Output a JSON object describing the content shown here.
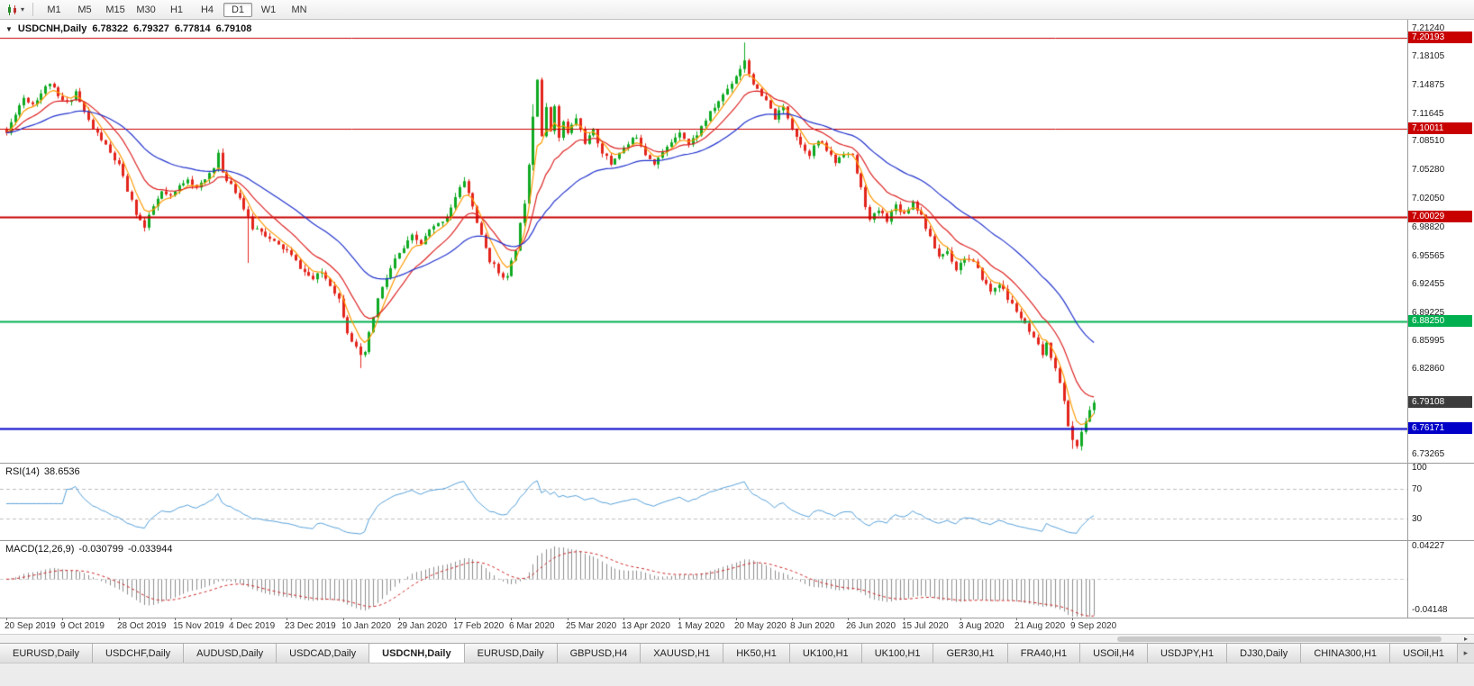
{
  "toolbar": {
    "timeframes": [
      "M1",
      "M5",
      "M15",
      "M30",
      "H1",
      "H4",
      "D1",
      "W1",
      "MN"
    ],
    "active_timeframe": "D1"
  },
  "icons": {
    "collapse": "▼",
    "caret": "▾",
    "scroll_right": "▸",
    "chart_type": "candlestick-chart"
  },
  "chart": {
    "title": {
      "symbol": "USDCNH,Daily",
      "open": "6.78322",
      "high": "6.79327",
      "low": "6.77814",
      "close": "6.79108"
    }
  },
  "tabs": {
    "active_index": 4,
    "items": [
      "EURUSD,Daily",
      "USDCHF,Daily",
      "AUDUSD,Daily",
      "USDCAD,Daily",
      "USDCNH,Daily",
      "EURUSD,Daily",
      "GBPUSD,H4",
      "XAUUSD,H1",
      "HK50,H1",
      "UK100,H1",
      "UK100,H1",
      "GER30,H1",
      "FRA40,H1",
      "USOil,H4",
      "USDJPY,H1",
      "DJ30,Daily",
      "CHINA300,H1",
      "USOil,H1"
    ]
  },
  "chart_data": {
    "type": "candlestick",
    "symbol": "USDCNH",
    "timeframe": "Daily",
    "price_range": {
      "top": 7.2225,
      "bottom": 6.7235
    },
    "price_axis_labels": [
      "7.21240",
      "7.18105",
      "7.14875",
      "7.11645",
      "7.08510",
      "7.05280",
      "7.02050",
      "6.98820",
      "6.95565",
      "6.92455",
      "6.89225",
      "6.85995",
      "6.82860",
      "6.73265"
    ],
    "x_axis_dates": [
      "20 Sep 2019",
      "9 Oct 2019",
      "28 Oct 2019",
      "15 Nov 2019",
      "4 Dec 2019",
      "23 Dec 2019",
      "10 Jan 2020",
      "29 Jan 2020",
      "17 Feb 2020",
      "6 Mar 2020",
      "25 Mar 2020",
      "13 Apr 2020",
      "1 May 2020",
      "20 May 2020",
      "8 Jun 2020",
      "26 Jun 2020",
      "15 Jul 2020",
      "3 Aug 2020",
      "21 Aug 2020",
      "9 Sep 2020"
    ],
    "levels": [
      {
        "price": 7.20193,
        "label": "7.20193",
        "color": "#c80000",
        "width": 1
      },
      {
        "price": 7.10011,
        "label": "7.10011",
        "color": "#c80000",
        "width": 1
      },
      {
        "price": 7.00029,
        "label": "7.00029",
        "color": "#c80000",
        "width": 2
      },
      {
        "price": 6.8825,
        "label": "6.88250",
        "color": "#00b050",
        "width": 2
      },
      {
        "price": 6.76171,
        "label": "6.76171",
        "color": "#0000c8",
        "width": 2
      }
    ],
    "current_price": {
      "value": 6.79108,
      "label": "6.79108",
      "color": "#3c3c3c"
    },
    "candle_colors": {
      "up": "#0faa22",
      "down": "#e3241c"
    },
    "moving_averages": [
      {
        "type": "ema",
        "period": 5,
        "color": "#ff9900"
      },
      {
        "type": "ema",
        "period": 13,
        "color": "#dd2222"
      },
      {
        "type": "ema",
        "period": 34,
        "color": "#2233cc"
      }
    ],
    "candles": {
      "count": 253,
      "seed": 11,
      "noise": 0.003,
      "wick": 0.005,
      "extra_wicks": {
        "56": [
          0.002,
          0.05
        ],
        "82": [
          0.002,
          0.012
        ],
        "122": [
          0.01,
          0.004
        ],
        "171": [
          0.018,
          0.002
        ],
        "247": [
          0.002,
          0.01
        ]
      },
      "anchors": [
        [
          0,
          7.095
        ],
        [
          2,
          7.118
        ],
        [
          4,
          7.135
        ],
        [
          6,
          7.128
        ],
        [
          8,
          7.14
        ],
        [
          10,
          7.152
        ],
        [
          12,
          7.135
        ],
        [
          14,
          7.128
        ],
        [
          16,
          7.142
        ],
        [
          18,
          7.118
        ],
        [
          20,
          7.1
        ],
        [
          22,
          7.088
        ],
        [
          24,
          7.072
        ],
        [
          26,
          7.058
        ],
        [
          28,
          7.03
        ],
        [
          30,
          7.005
        ],
        [
          32,
          6.988
        ],
        [
          34,
          7.012
        ],
        [
          36,
          7.028
        ],
        [
          38,
          7.022
        ],
        [
          40,
          7.035
        ],
        [
          42,
          7.045
        ],
        [
          44,
          7.032
        ],
        [
          46,
          7.042
        ],
        [
          48,
          7.058
        ],
        [
          49,
          7.072
        ],
        [
          50,
          7.048
        ],
        [
          52,
          7.038
        ],
        [
          54,
          7.022
        ],
        [
          56,
          6.998
        ],
        [
          57,
          6.988
        ],
        [
          59,
          6.986
        ],
        [
          61,
          6.975
        ],
        [
          63,
          6.968
        ],
        [
          65,
          6.962
        ],
        [
          67,
          6.95
        ],
        [
          69,
          6.938
        ],
        [
          71,
          6.93
        ],
        [
          73,
          6.938
        ],
        [
          75,
          6.925
        ],
        [
          77,
          6.908
        ],
        [
          79,
          6.872
        ],
        [
          81,
          6.852
        ],
        [
          82,
          6.842
        ],
        [
          83,
          6.848
        ],
        [
          84,
          6.868
        ],
        [
          86,
          6.908
        ],
        [
          88,
          6.932
        ],
        [
          90,
          6.952
        ],
        [
          92,
          6.965
        ],
        [
          94,
          6.978
        ],
        [
          96,
          6.97
        ],
        [
          98,
          6.985
        ],
        [
          100,
          6.992
        ],
        [
          102,
          7.002
        ],
        [
          104,
          7.022
        ],
        [
          106,
          7.042
        ],
        [
          108,
          7.012
        ],
        [
          110,
          6.978
        ],
        [
          112,
          6.952
        ],
        [
          114,
          6.938
        ],
        [
          116,
          6.932
        ],
        [
          118,
          6.965
        ],
        [
          120,
          7.018
        ],
        [
          121,
          7.062
        ],
        [
          122,
          7.115
        ],
        [
          123,
          7.158
        ],
        [
          124,
          7.092
        ],
        [
          125,
          7.122
        ],
        [
          126,
          7.098
        ],
        [
          127,
          7.128
        ],
        [
          128,
          7.088
        ],
        [
          129,
          7.108
        ],
        [
          130,
          7.094
        ],
        [
          132,
          7.112
        ],
        [
          134,
          7.085
        ],
        [
          136,
          7.096
        ],
        [
          138,
          7.074
        ],
        [
          140,
          7.06
        ],
        [
          142,
          7.074
        ],
        [
          144,
          7.082
        ],
        [
          146,
          7.092
        ],
        [
          148,
          7.072
        ],
        [
          150,
          7.062
        ],
        [
          152,
          7.072
        ],
        [
          154,
          7.085
        ],
        [
          156,
          7.098
        ],
        [
          158,
          7.082
        ],
        [
          160,
          7.094
        ],
        [
          162,
          7.11
        ],
        [
          164,
          7.124
        ],
        [
          166,
          7.138
        ],
        [
          168,
          7.152
        ],
        [
          170,
          7.168
        ],
        [
          171,
          7.178
        ],
        [
          172,
          7.162
        ],
        [
          174,
          7.142
        ],
        [
          176,
          7.13
        ],
        [
          178,
          7.112
        ],
        [
          180,
          7.124
        ],
        [
          182,
          7.102
        ],
        [
          184,
          7.082
        ],
        [
          186,
          7.072
        ],
        [
          188,
          7.086
        ],
        [
          190,
          7.076
        ],
        [
          192,
          7.062
        ],
        [
          194,
          7.074
        ],
        [
          196,
          7.068
        ],
        [
          198,
          7.032
        ],
        [
          200,
          6.996
        ],
        [
          202,
          7.008
        ],
        [
          204,
          6.998
        ],
        [
          206,
          7.014
        ],
        [
          208,
          7.004
        ],
        [
          210,
          7.018
        ],
        [
          212,
          7.002
        ],
        [
          214,
          6.976
        ],
        [
          216,
          6.956
        ],
        [
          218,
          6.962
        ],
        [
          220,
          6.942
        ],
        [
          222,
          6.955
        ],
        [
          224,
          6.948
        ],
        [
          226,
          6.932
        ],
        [
          228,
          6.916
        ],
        [
          230,
          6.926
        ],
        [
          232,
          6.908
        ],
        [
          234,
          6.895
        ],
        [
          236,
          6.878
        ],
        [
          238,
          6.862
        ],
        [
          240,
          6.846
        ],
        [
          241,
          6.856
        ],
        [
          243,
          6.832
        ],
        [
          244,
          6.812
        ],
        [
          245,
          6.792
        ],
        [
          246,
          6.766
        ],
        [
          247,
          6.75
        ],
        [
          248,
          6.742
        ],
        [
          249,
          6.756
        ],
        [
          250,
          6.771
        ],
        [
          251,
          6.783
        ],
        [
          252,
          6.7911
        ]
      ]
    },
    "rsi": {
      "name": "RSI(14)",
      "value": "38.6536",
      "period": 14,
      "color": "#56a0d9",
      "axis_labels": [
        "100",
        "70",
        "30"
      ],
      "axis_values": [
        100,
        70,
        30
      ],
      "level_lines": [
        70,
        30
      ]
    },
    "macd": {
      "name": "MACD(12,26,9)",
      "value_macd": "-0.030799",
      "value_signal": "-0.033944",
      "fast": 12,
      "slow": 26,
      "signal": 9,
      "hist_color": "#8c8c8c",
      "signal_color": "#cc2222",
      "axis_labels": [
        "0.04227",
        "-0.04148"
      ],
      "axis_values": [
        0.04227,
        -0.04148
      ]
    }
  }
}
